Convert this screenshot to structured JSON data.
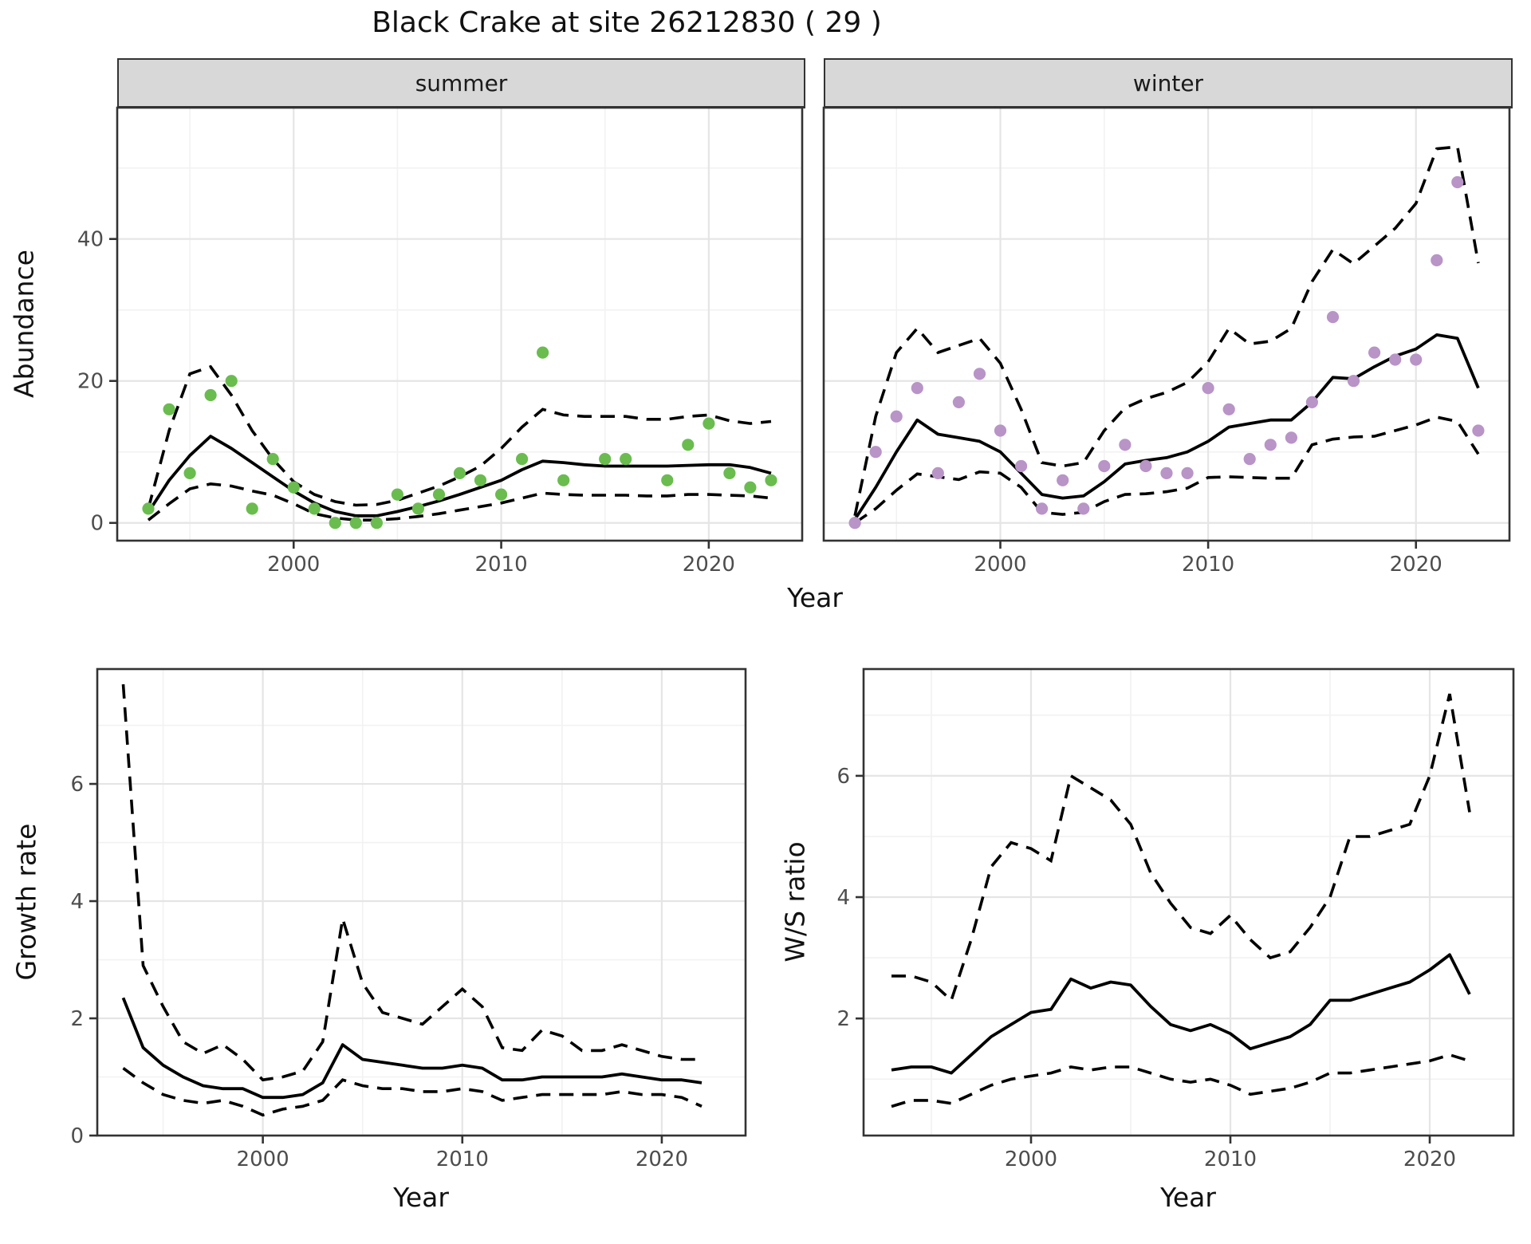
{
  "title": "Black Crake at site 26212830 ( 29 )",
  "axes": {
    "abundance_label": "Abundance",
    "growth_label": "Growth rate",
    "ws_label": "W/S ratio",
    "year_label_top": "Year",
    "year_label_growth": "Year",
    "year_label_ws": "Year"
  },
  "facets": [
    {
      "label": "summer"
    },
    {
      "label": "winter"
    }
  ],
  "colors": {
    "summer_point": "#6abc4f",
    "winter_point": "#b894c7",
    "line": "#000000",
    "strip_fill": "#d8d8d8",
    "grid_major": "#e5e5e5",
    "grid_minor": "#f2f2f2",
    "panel_border": "#333333",
    "tick_text": "#4d4d4d"
  },
  "chart_data": {
    "type": "line",
    "title": "Black Crake at site 26212830 ( 29 )",
    "xlabel": "Year",
    "legend": "none",
    "grid": "on",
    "line_styles": {
      "mean": "solid",
      "upper": "dashed",
      "lower": "dashed"
    },
    "panels": [
      {
        "id": "summer",
        "facet_label": "summer",
        "ylabel": "Abundance",
        "xlim": [
          1991.5,
          2024.5
        ],
        "ylim": [
          -2.5,
          58.5
        ],
        "xticks": [
          2000,
          2010,
          2020
        ],
        "yticks": [
          0,
          20,
          40
        ],
        "x": [
          1993,
          1994,
          1995,
          1996,
          1997,
          1998,
          1999,
          2000,
          2001,
          2002,
          2003,
          2004,
          2005,
          2006,
          2007,
          2008,
          2009,
          2010,
          2011,
          2012,
          2013,
          2014,
          2015,
          2016,
          2017,
          2018,
          2019,
          2020,
          2021,
          2022,
          2023
        ],
        "mean": [
          1.5,
          6,
          9.5,
          12.2,
          10.5,
          8.5,
          6.5,
          4.5,
          2.8,
          1.6,
          1.0,
          1.0,
          1.6,
          2.3,
          3.1,
          4.0,
          5.0,
          6.0,
          7.5,
          8.7,
          8.5,
          8.2,
          8.0,
          8.0,
          8.0,
          8.0,
          8.1,
          8.2,
          8.2,
          7.8,
          7.0
        ],
        "upper": [
          2.0,
          13,
          21,
          22,
          18,
          13,
          9,
          5.8,
          4.0,
          3.0,
          2.5,
          2.6,
          3.2,
          4.2,
          5.2,
          6.5,
          8.0,
          10.5,
          13.5,
          16,
          15.2,
          15,
          15,
          15,
          14.6,
          14.6,
          15,
          15.2,
          14.4,
          14,
          14.3
        ],
        "lower": [
          0.4,
          2.7,
          4.8,
          5.5,
          5.2,
          4.5,
          3.9,
          2.7,
          1.3,
          0.7,
          0.4,
          0.4,
          0.6,
          0.9,
          1.3,
          1.8,
          2.3,
          2.8,
          3.5,
          4.2,
          4.0,
          3.9,
          3.9,
          3.9,
          3.8,
          3.8,
          4.0,
          4.0,
          3.9,
          3.8,
          3.5
        ],
        "points_x": [
          1993,
          1994,
          1995,
          1996,
          1997,
          1998,
          1999,
          2000,
          2001,
          2002,
          2003,
          2004,
          2005,
          2006,
          2007,
          2008,
          2009,
          2010,
          2011,
          2012,
          2013,
          2015,
          2016,
          2018,
          2019,
          2020,
          2021,
          2022,
          2023
        ],
        "points_y": [
          2,
          16,
          7,
          18,
          20,
          2,
          9,
          5,
          2,
          0,
          0,
          0,
          4,
          2,
          4,
          7,
          6,
          4,
          9,
          24,
          6,
          9,
          9,
          6,
          11,
          14,
          7,
          5,
          6
        ],
        "point_color": "#6abc4f"
      },
      {
        "id": "winter",
        "facet_label": "winter",
        "ylabel": "Abundance",
        "xlim": [
          1991.5,
          2024.5
        ],
        "ylim": [
          -2.5,
          58.5
        ],
        "xticks": [
          2000,
          2010,
          2020
        ],
        "yticks": [
          0,
          20,
          40
        ],
        "x": [
          1993,
          1994,
          1995,
          1996,
          1997,
          1998,
          1999,
          2000,
          2001,
          2002,
          2003,
          2004,
          2005,
          2006,
          2007,
          2008,
          2009,
          2010,
          2011,
          2012,
          2013,
          2014,
          2015,
          2016,
          2017,
          2018,
          2019,
          2020,
          2021,
          2022,
          2023
        ],
        "mean": [
          0.5,
          5,
          10,
          14.5,
          12.5,
          12,
          11.5,
          10,
          7,
          4,
          3.5,
          3.8,
          5.8,
          8.3,
          8.8,
          9.2,
          10,
          11.5,
          13.5,
          14,
          14.5,
          14.5,
          17,
          20.5,
          20.3,
          22,
          23.5,
          24.5,
          26.5,
          26,
          19
        ],
        "upper": [
          1,
          15,
          24,
          27.4,
          24,
          25,
          26,
          22.5,
          16,
          8.5,
          8,
          8.5,
          13,
          16.2,
          17.5,
          18.4,
          19.8,
          22.7,
          27.4,
          25.2,
          25.6,
          27.4,
          34,
          38.5,
          36.5,
          39,
          41.5,
          45,
          52.7,
          53,
          36.6
        ],
        "lower": [
          0,
          2,
          4.6,
          6.9,
          6.5,
          6.1,
          7.2,
          7,
          5,
          1.5,
          1.2,
          1.5,
          3,
          4,
          4.1,
          4.4,
          4.9,
          6.4,
          6.5,
          6.4,
          6.3,
          6.3,
          11,
          11.8,
          12.1,
          12.2,
          13,
          13.8,
          14.9,
          14.3,
          9.7
        ],
        "points_x": [
          1993,
          1994,
          1995,
          1996,
          1997,
          1998,
          1999,
          2000,
          2001,
          2002,
          2003,
          2004,
          2005,
          2006,
          2007,
          2008,
          2009,
          2010,
          2011,
          2012,
          2013,
          2014,
          2015,
          2016,
          2017,
          2018,
          2019,
          2020,
          2021,
          2022,
          2023
        ],
        "points_y": [
          0,
          10,
          15,
          19,
          7,
          17,
          21,
          13,
          8,
          2,
          6,
          2,
          8,
          11,
          8,
          7,
          7,
          19,
          16,
          9,
          11,
          12,
          17,
          29,
          20,
          24,
          23,
          23,
          37,
          48,
          13
        ],
        "point_color": "#b894c7"
      },
      {
        "id": "growth",
        "facet_label": "",
        "ylabel": "Growth rate",
        "xlim": [
          1991.7,
          2024.2
        ],
        "ylim": [
          0,
          7.96
        ],
        "xticks": [
          2000,
          2010,
          2020
        ],
        "yticks": [
          0,
          2,
          4,
          6,
          8
        ],
        "x": [
          1993,
          1994,
          1995,
          1996,
          1997,
          1998,
          1999,
          2000,
          2001,
          2002,
          2003,
          2004,
          2005,
          2006,
          2007,
          2008,
          2009,
          2010,
          2011,
          2012,
          2013,
          2014,
          2015,
          2016,
          2017,
          2018,
          2019,
          2020,
          2021,
          2022
        ],
        "mean": [
          2.35,
          1.5,
          1.2,
          1.0,
          0.85,
          0.8,
          0.8,
          0.65,
          0.65,
          0.7,
          0.9,
          1.55,
          1.3,
          1.25,
          1.2,
          1.15,
          1.15,
          1.2,
          1.15,
          0.95,
          0.95,
          1.0,
          1.0,
          1.0,
          1.0,
          1.05,
          1.0,
          0.95,
          0.95,
          0.9
        ],
        "upper": [
          7.7,
          2.9,
          2.2,
          1.6,
          1.4,
          1.55,
          1.3,
          0.95,
          1.0,
          1.1,
          1.6,
          3.7,
          2.6,
          2.1,
          2.0,
          1.9,
          2.2,
          2.5,
          2.2,
          1.5,
          1.45,
          1.8,
          1.7,
          1.45,
          1.45,
          1.55,
          1.45,
          1.35,
          1.3,
          1.3
        ],
        "lower": [
          1.15,
          0.9,
          0.7,
          0.6,
          0.55,
          0.6,
          0.5,
          0.35,
          0.45,
          0.5,
          0.6,
          0.95,
          0.85,
          0.8,
          0.8,
          0.75,
          0.75,
          0.8,
          0.75,
          0.6,
          0.65,
          0.7,
          0.7,
          0.7,
          0.7,
          0.75,
          0.7,
          0.7,
          0.65,
          0.5
        ],
        "points_x": [],
        "points_y": [],
        "point_color": "none"
      },
      {
        "id": "ws",
        "facet_label": "",
        "ylabel": "W/S ratio",
        "xlim": [
          1991.6,
          2024.2
        ],
        "ylim": [
          0.07,
          7.76
        ],
        "xticks": [
          2000,
          2010,
          2020
        ],
        "yticks": [
          2,
          4,
          6
        ],
        "x": [
          1993,
          1994,
          1995,
          1996,
          1997,
          1998,
          1999,
          2000,
          2001,
          2002,
          2003,
          2004,
          2005,
          2006,
          2007,
          2008,
          2009,
          2010,
          2011,
          2012,
          2013,
          2014,
          2015,
          2016,
          2017,
          2018,
          2019,
          2020,
          2021,
          2022
        ],
        "mean": [
          1.15,
          1.2,
          1.2,
          1.1,
          1.4,
          1.7,
          1.9,
          2.1,
          2.15,
          2.65,
          2.5,
          2.6,
          2.55,
          2.2,
          1.9,
          1.8,
          1.9,
          1.75,
          1.5,
          1.6,
          1.7,
          1.9,
          2.3,
          2.3,
          2.4,
          2.5,
          2.6,
          2.8,
          3.05,
          2.4
        ],
        "upper": [
          2.7,
          2.7,
          2.6,
          2.3,
          3.3,
          4.5,
          4.9,
          4.8,
          4.6,
          6.0,
          5.8,
          5.6,
          5.2,
          4.4,
          3.9,
          3.5,
          3.4,
          3.7,
          3.3,
          3.0,
          3.1,
          3.5,
          4.0,
          5.0,
          5.0,
          5.1,
          5.2,
          6.0,
          7.35,
          5.4
        ],
        "lower": [
          0.55,
          0.65,
          0.65,
          0.6,
          0.75,
          0.9,
          1.0,
          1.05,
          1.1,
          1.2,
          1.15,
          1.2,
          1.2,
          1.1,
          1.0,
          0.95,
          1.0,
          0.9,
          0.75,
          0.8,
          0.85,
          0.95,
          1.1,
          1.1,
          1.15,
          1.2,
          1.25,
          1.3,
          1.4,
          1.3
        ],
        "points_x": [],
        "points_y": [],
        "point_color": "none"
      }
    ]
  }
}
